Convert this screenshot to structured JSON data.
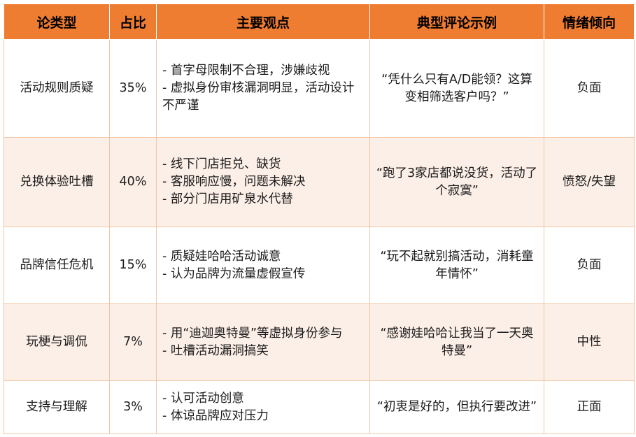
{
  "headers": {
    "type": "论类型",
    "ratio": "占比",
    "views": "主要观点",
    "example": "典型评论示例",
    "sentiment": "情绪倾向"
  },
  "rows": [
    {
      "type": "活动规则质疑",
      "ratio": "35%",
      "views": [
        "- 首字母限制不合理，涉嫌歧视",
        "- 虚拟身份审核漏洞明显，活动设计不严谨"
      ],
      "example": "“凭什么只有A/D能领？这算变相筛选客户吗？”",
      "sentiment": "负面"
    },
    {
      "type": "兑换体验吐槽",
      "ratio": "40%",
      "views": [
        "- 线下门店拒兑、缺货",
        "- 客服响应慢，问题未解决",
        "- 部分门店用矿泉水代替"
      ],
      "example": "“跑了3家店都说没货，活动了个寂寞”",
      "sentiment": "愤怒/失望"
    },
    {
      "type": "品牌信任危机",
      "ratio": "15%",
      "views": [
        "- 质疑娃哈哈活动诚意",
        "- 认为品牌为流量虚假宣传"
      ],
      "example": "“玩不起就别搞活动，消耗童年情怀”",
      "sentiment": "负面"
    },
    {
      "type": "玩梗与调侃",
      "ratio": "7%",
      "views": [
        "- 用“迪迦奥特曼”等虚拟身份参与",
        "- 吐槽活动漏洞搞笑"
      ],
      "example": "“感谢娃哈哈让我当了一天奥特曼”",
      "sentiment": "中性"
    },
    {
      "type": "支持与理解",
      "ratio": "3%",
      "views": [
        "- 认可活动创意",
        "- 体谅品牌应对压力"
      ],
      "example": "“初衷是好的，但执行要改进”",
      "sentiment": "正面"
    }
  ]
}
